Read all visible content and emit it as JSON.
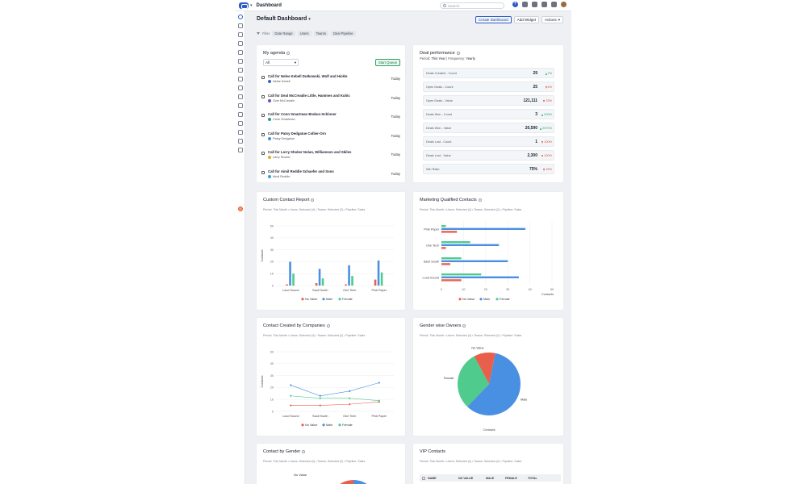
{
  "topbar": {
    "title": "Dashboard",
    "search_placeholder": "Search"
  },
  "header": {
    "title": "Default Dashboard",
    "buttons": [
      "Create Dashboard",
      "Add Widget",
      "Actions"
    ]
  },
  "filter": {
    "label": "Filter",
    "chips": [
      "Date Range",
      "Users",
      "Teams",
      "Deal Pipeline"
    ]
  },
  "agenda": {
    "title": "My agenda",
    "select_value": "All",
    "queue_button": "Start Queue",
    "items": [
      {
        "title": "Call for Nelee Kebell Dutkowski, Wolf and Hickle",
        "person": "Nelee Kebell",
        "day": "Today",
        "avatar_color": "#3b63c9"
      },
      {
        "title": "Call for Deal McCreadie Little, Hammes and Kuhic",
        "person": "Ozie McCreadie",
        "day": "Today",
        "avatar_color": "#7a4fb5"
      },
      {
        "title": "Call for Conn Smartman Brakus-Schinner",
        "person": "Conn Smartman",
        "day": "Today",
        "avatar_color": "#2b9c8a"
      },
      {
        "title": "Call for Patsy Dedgatue Collier-Orn",
        "person": "Patsy Dedgatue",
        "day": "Today",
        "avatar_color": "#4d8fdc"
      },
      {
        "title": "Call for Lorry Shoker Nolan, Williamson and Skiles",
        "person": "Larry Shoker",
        "day": "Today",
        "avatar_color": "#d5b224"
      },
      {
        "title": "Call for Aimil Reddle Schaefer and Sons",
        "person": "Aimil Reddle",
        "day": "Today",
        "avatar_color": "#3b9bd4"
      }
    ]
  },
  "deal": {
    "title": "Deal performance",
    "period_label": "Period:",
    "period_value": "This Year",
    "frequency_label": "| Frequency:",
    "frequency_value": "Yearly",
    "rows": [
      {
        "label": "Deals Created - Count",
        "value": "29",
        "trend": "7%",
        "dir": "up"
      },
      {
        "label": "Open Deals - Count",
        "value": "25",
        "trend": "4%",
        "dir": "down"
      },
      {
        "label": "Open Deals - Value",
        "value": "121,111",
        "trend": "33%",
        "dir": "down"
      },
      {
        "label": "Deals Won - Count",
        "value": "3",
        "trend": "200%",
        "dir": "up"
      },
      {
        "label": "Deals Won - Value",
        "value": "20,590",
        "trend": "2070%",
        "dir": "up"
      },
      {
        "label": "Deals Lost - Count",
        "value": "1",
        "trend": "100%",
        "dir": "down"
      },
      {
        "label": "Deals Lost - Value",
        "value": "2,300",
        "trend": "100%",
        "dir": "down"
      },
      {
        "label": "Win Ratio",
        "value": "75%",
        "trend": "25%",
        "dir": "down"
      }
    ]
  },
  "colors": {
    "no_value": "#e8604c",
    "male": "#4a90e2",
    "female": "#4ecb8d"
  },
  "legend": {
    "no_value": "No Value",
    "male": "Male",
    "female": "Female"
  },
  "ccr": {
    "title": "Custom Contact Report",
    "subtitle": "Period: This Month  •  Users: Selected (4)  •  Teams: Selected (2)  •  Pipeline: Sales",
    "ylabel": "Contacts"
  },
  "mqc": {
    "title": "Marketing Qualified Contacts",
    "subtitle": "Period: This Month  •  Users: Selected (4)  •  Teams: Selected (2)  •  Pipeline: Sales",
    "xlabel": "Contacts"
  },
  "ccc": {
    "title": "Contact Created by Companies",
    "subtitle": "Period: This Month  •  Users: Selected (4)  •  Teams: Selected (2)  •  Pipeline: Sales",
    "ylabel": "Contacts"
  },
  "gwo": {
    "title": "Gender wise Owners",
    "subtitle": "Period: This Month  •  Users: Selected (4)  •  Teams: Selected (2)  •  Pipeline: Sales",
    "xlabel": "Contacts"
  },
  "cbg": {
    "title": "Contact by Gender",
    "subtitle": "Period: This Month  •  Users: Selected (4)  •  Teams: Selected (2)  •  Pipeline: Sales",
    "partial_label": "No Value"
  },
  "vip": {
    "title": "VIP Contacts",
    "subtitle": "Period: This Month  •  Users: Selected (4)  •  Teams: Selected (2)  •  Pipeline: Sales",
    "columns": [
      "NAME",
      "NO VALUE",
      "MALE",
      "FEMALE",
      "TOTAL"
    ]
  },
  "chart_data": [
    {
      "type": "bar",
      "title": "Custom Contact Report",
      "categories": [
        "Loud Sound",
        "Saull South",
        "One Tech",
        "Pink Paper"
      ],
      "ylabel": "Contacts",
      "ylim": [
        0,
        50
      ],
      "yticks": [
        0,
        10,
        20,
        30,
        40,
        50
      ],
      "series": [
        {
          "name": "No Value",
          "values": [
            1,
            2,
            1,
            5
          ]
        },
        {
          "name": "Male",
          "values": [
            20,
            14,
            17,
            21
          ]
        },
        {
          "name": "Female",
          "values": [
            10,
            6,
            8,
            11
          ]
        }
      ]
    },
    {
      "type": "bar",
      "orientation": "horizontal",
      "title": "Marketing Qualified Contacts",
      "categories": [
        "Pink Paper",
        "One Tech",
        "Saull South",
        "Loud Sound"
      ],
      "xlabel": "Contacts",
      "xlim": [
        0,
        50
      ],
      "xticks": [
        0,
        10,
        20,
        30,
        40,
        50
      ],
      "series": [
        {
          "name": "No Value",
          "values": [
            7,
            2,
            4,
            9
          ]
        },
        {
          "name": "Male",
          "values": [
            38,
            26,
            30,
            35
          ]
        },
        {
          "name": "Female",
          "values": [
            2,
            13,
            9,
            18
          ]
        }
      ]
    },
    {
      "type": "line",
      "title": "Contact Created by Companies",
      "categories": [
        "Loud Sound",
        "Saull South",
        "One Tech",
        "Pink Paper"
      ],
      "ylabel": "Contacts",
      "ylim": [
        0,
        50
      ],
      "yticks": [
        0,
        10,
        20,
        30,
        40,
        50
      ],
      "series": [
        {
          "name": "No Value",
          "values": [
            5,
            5,
            6,
            8
          ]
        },
        {
          "name": "Male",
          "values": [
            22,
            13,
            17,
            24
          ]
        },
        {
          "name": "Female",
          "values": [
            13,
            11,
            11,
            9
          ]
        }
      ]
    },
    {
      "type": "pie",
      "title": "Gender wise Owners",
      "labels": [
        "Male",
        "Female",
        "No Value"
      ],
      "values": [
        59,
        30,
        11
      ]
    }
  ]
}
